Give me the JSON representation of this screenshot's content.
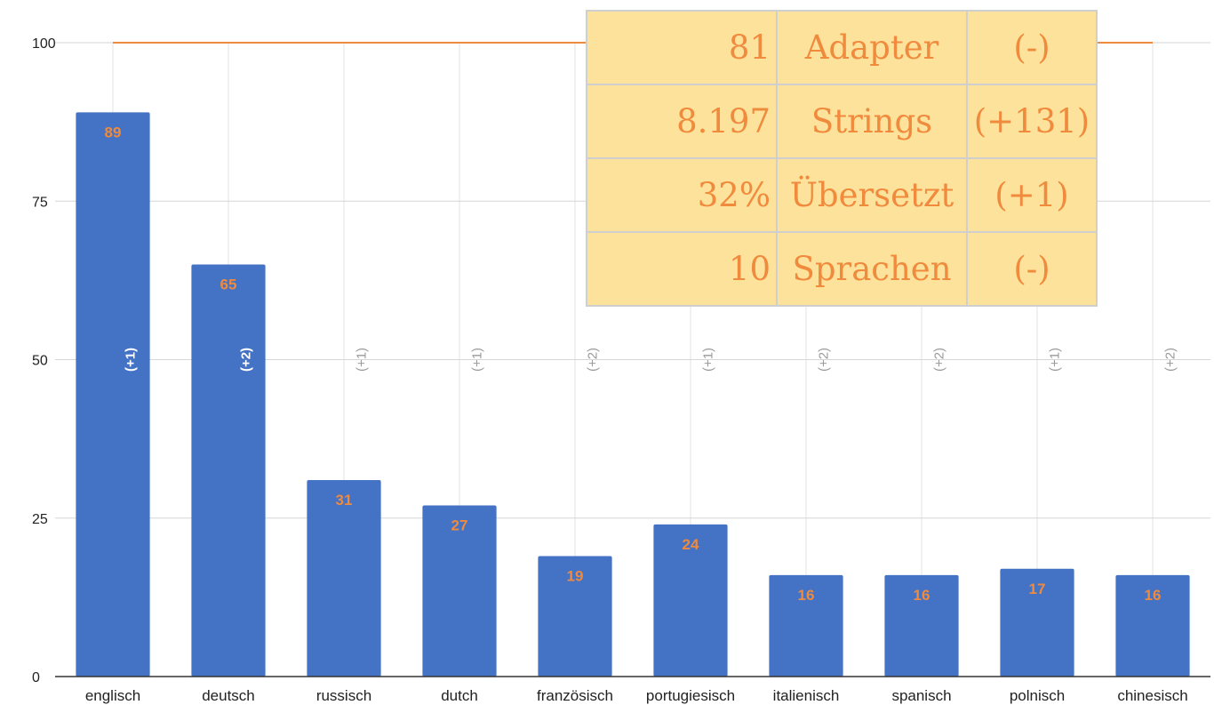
{
  "chart_data": {
    "type": "bar",
    "categories": [
      "englisch",
      "deutsch",
      "russisch",
      "dutch",
      "französisch",
      "portugiesisch",
      "italienisch",
      "spanisch",
      "polnisch",
      "chinesisch"
    ],
    "values": [
      89,
      65,
      31,
      27,
      19,
      24,
      16,
      16,
      17,
      16
    ],
    "changes": [
      "(+1)",
      "(+2)",
      "(+1)",
      "(+1)",
      "(+2)",
      "(+1)",
      "(+2)",
      "(+2)",
      "(+1)",
      "(+2)"
    ],
    "reference_line": 100,
    "ylim": [
      0,
      100
    ],
    "yticks": [
      "0",
      "25",
      "50",
      "75",
      "100"
    ],
    "grid": true,
    "colors": {
      "bar": "#4472c4",
      "value_label": "#f08a3c",
      "reference_line": "#f08a3c"
    }
  },
  "stats": [
    {
      "number": "81",
      "label": "Adapter",
      "change": "(-)"
    },
    {
      "number": "8.197",
      "label": "Strings",
      "change": "(+131)"
    },
    {
      "number": "32%",
      "label": "Übersetzt",
      "change": "(+1)"
    },
    {
      "number": "10",
      "label": "Sprachen",
      "change": "(-)"
    }
  ]
}
